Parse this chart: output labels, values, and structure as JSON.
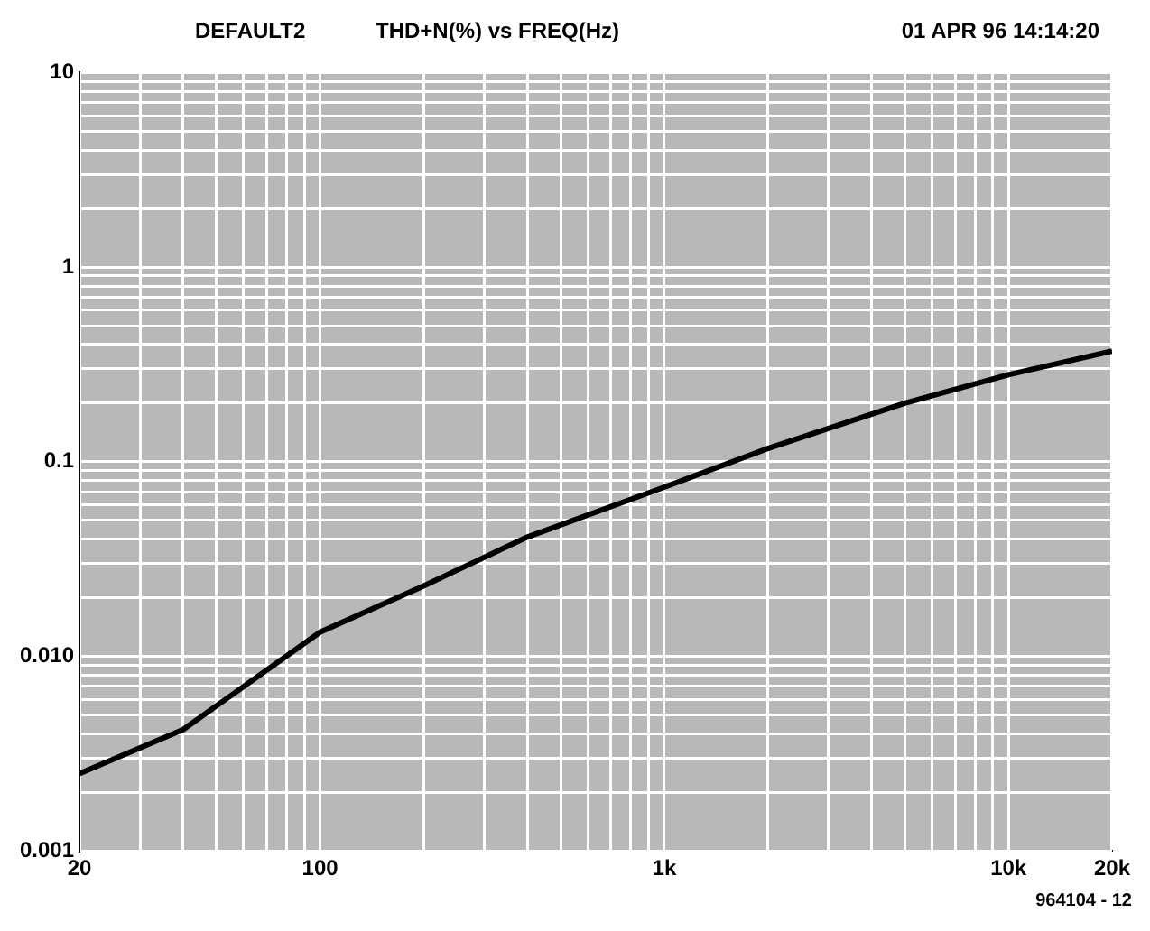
{
  "chart_data": {
    "type": "line",
    "title": "THD+N(%)  vs  FREQ(Hz)",
    "annotations": [
      "DEFAULT2",
      "01 APR 96 14:14:20",
      "964104 - 12"
    ],
    "x": [
      20,
      40,
      100,
      200,
      400,
      1000,
      2000,
      5000,
      10000,
      20000
    ],
    "series": [
      {
        "color": "#000000",
        "values": [
          0.0025,
          0.0042,
          0.0133,
          0.023,
          0.041,
          0.074,
          0.117,
          0.2,
          0.28,
          0.37
        ]
      }
    ],
    "log": "xy",
    "xlim": [
      20,
      20000
    ],
    "ylim": [
      0.001,
      10
    ],
    "xticks": [
      20,
      {
        "value": 30,
        "label": null
      },
      {
        "value": 40,
        "label": null
      },
      {
        "value": 50,
        "label": null
      },
      {
        "value": 60,
        "label": null
      },
      {
        "value": 70,
        "label": null
      },
      {
        "value": 80,
        "label": null
      },
      {
        "value": 90,
        "label": null
      },
      100,
      {
        "value": 200,
        "label": null
      },
      {
        "value": 300,
        "label": null
      },
      {
        "value": 400,
        "label": null
      },
      {
        "value": 500,
        "label": null
      },
      {
        "value": 600,
        "label": null
      },
      {
        "value": 700,
        "label": null
      },
      {
        "value": 800,
        "label": null
      },
      {
        "value": 900,
        "label": null
      },
      {
        "value": 1000,
        "label": "1k"
      },
      {
        "value": 2000,
        "label": null
      },
      {
        "value": 3000,
        "label": null
      },
      {
        "value": 4000,
        "label": null
      },
      {
        "value": 5000,
        "label": null
      },
      {
        "value": 6000,
        "label": null
      },
      {
        "value": 7000,
        "label": null
      },
      {
        "value": 8000,
        "label": null
      },
      {
        "value": 9000,
        "label": null
      },
      {
        "value": 10000,
        "label": "10k"
      },
      {
        "value": 20000,
        "label": "20k"
      }
    ],
    "yticks": [
      0.001,
      {
        "value": 0.002,
        "label": null
      },
      {
        "value": 0.003,
        "label": null
      },
      {
        "value": 0.004,
        "label": null
      },
      {
        "value": 0.005,
        "label": null
      },
      {
        "value": 0.006,
        "label": null
      },
      {
        "value": 0.007,
        "label": null
      },
      {
        "value": 0.008,
        "label": null
      },
      {
        "value": 0.009,
        "label": null
      },
      {
        "value": 0.01,
        "label": "0.010"
      },
      {
        "value": 0.02,
        "label": null
      },
      {
        "value": 0.03,
        "label": null
      },
      {
        "value": 0.04,
        "label": null
      },
      {
        "value": 0.05,
        "label": null
      },
      {
        "value": 0.06,
        "label": null
      },
      {
        "value": 0.07,
        "label": null
      },
      {
        "value": 0.08,
        "label": null
      },
      {
        "value": 0.09,
        "label": null
      },
      0.1,
      {
        "value": 0.2,
        "label": null
      },
      {
        "value": 0.3,
        "label": null
      },
      {
        "value": 0.4,
        "label": null
      },
      {
        "value": 0.5,
        "label": null
      },
      {
        "value": 0.6,
        "label": null
      },
      {
        "value": 0.7,
        "label": null
      },
      {
        "value": 0.8,
        "label": null
      },
      {
        "value": 0.9,
        "label": null
      },
      1,
      {
        "value": 2,
        "label": null
      },
      {
        "value": 3,
        "label": null
      },
      {
        "value": 4,
        "label": null
      },
      {
        "value": 5,
        "label": null
      },
      {
        "value": 6,
        "label": null
      },
      {
        "value": 7,
        "label": null
      },
      {
        "value": 8,
        "label": null
      },
      {
        "value": 9,
        "label": null
      },
      10
    ],
    "grid": true,
    "marker": "none",
    "line_style": "solid",
    "legend": false
  }
}
